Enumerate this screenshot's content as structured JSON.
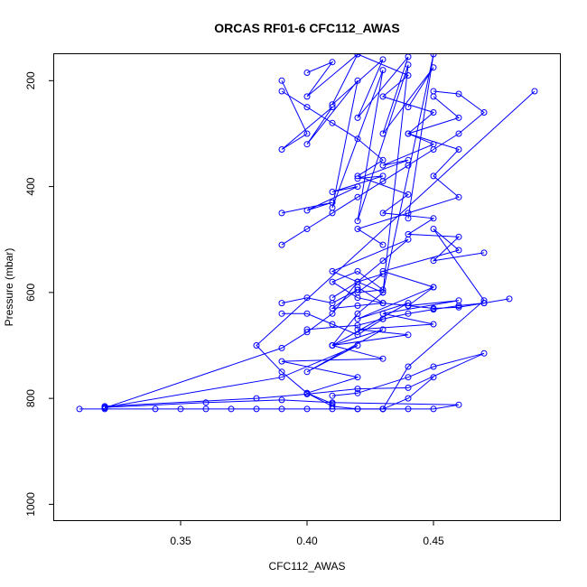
{
  "chart_data": {
    "type": "line",
    "title": "ORCAS RF01-6 CFC112_AWAS",
    "xlabel": "CFC112_AWAS",
    "ylabel": "Pressure (mbar)",
    "xlim": [
      0.3,
      0.5
    ],
    "ylim": [
      1030,
      150
    ],
    "y_reversed": true,
    "x_ticks": [
      0.35,
      0.4,
      0.45
    ],
    "x_tick_labels": [
      "0.35",
      "0.40",
      "0.45"
    ],
    "y_ticks": [
      200,
      400,
      600,
      800,
      1000
    ],
    "y_tick_labels": [
      "200",
      "400",
      "600",
      "800",
      "1000"
    ],
    "grid": false,
    "color": "#0000ff",
    "series": [
      {
        "x": [
          0.31,
          0.32,
          0.34,
          0.35,
          0.36,
          0.37,
          0.38,
          0.39,
          0.4,
          0.41,
          0.42,
          0.43,
          0.44,
          0.45,
          0.46,
          0.41,
          0.39,
          0.36,
          0.32
        ],
        "y": [
          820,
          820,
          820,
          820,
          820,
          820,
          820,
          820,
          820,
          820,
          820,
          820,
          820,
          820,
          812,
          808,
          803,
          808,
          817
        ]
      },
      {
        "x": [
          0.32,
          0.39,
          0.42,
          0.4,
          0.43,
          0.41,
          0.44,
          0.42,
          0.45,
          0.43,
          0.46,
          0.45,
          0.47,
          0.44,
          0.43
        ],
        "y": [
          817,
          760,
          700,
          750,
          670,
          700,
          620,
          650,
          590,
          560,
          520,
          480,
          615,
          740,
          820
        ]
      },
      {
        "x": [
          0.32,
          0.38,
          0.4,
          0.42,
          0.44,
          0.47,
          0.45,
          0.44,
          0.42,
          0.41
        ],
        "y": [
          815,
          800,
          792,
          782,
          780,
          715,
          740,
          760,
          790,
          795
        ]
      },
      {
        "x": [
          0.32,
          0.39,
          0.4,
          0.41,
          0.42,
          0.43,
          0.44,
          0.41,
          0.43,
          0.42,
          0.41
        ],
        "y": [
          818,
          705,
          675,
          640,
          580,
          540,
          500,
          560,
          600,
          640,
          700
        ]
      },
      {
        "x": [
          0.49,
          0.38,
          0.39,
          0.4,
          0.41,
          0.42,
          0.43,
          0.44,
          0.45
        ],
        "y": [
          220,
          700,
          750,
          790,
          815,
          820,
          820,
          800,
          760
        ]
      },
      {
        "x": [
          0.4,
          0.42,
          0.43,
          0.44,
          0.45,
          0.46,
          0.47,
          0.48
        ],
        "y": [
          670,
          662,
          650,
          640,
          632,
          625,
          620,
          612
        ]
      },
      {
        "x": [
          0.41,
          0.4,
          0.42,
          0.39,
          0.43,
          0.41,
          0.44,
          0.42,
          0.45,
          0.43,
          0.46,
          0.44,
          0.45
        ],
        "y": [
          810,
          790,
          760,
          730,
          725,
          700,
          680,
          670,
          660,
          640,
          615,
          625,
          590
        ]
      },
      {
        "x": [
          0.39,
          0.4,
          0.39,
          0.41,
          0.4,
          0.42,
          0.41,
          0.43,
          0.42,
          0.44,
          0.43,
          0.45,
          0.44
        ],
        "y": [
          200,
          300,
          330,
          250,
          320,
          200,
          440,
          180,
          465,
          170,
          600,
          150,
          460
        ]
      },
      {
        "x": [
          0.39,
          0.4,
          0.41,
          0.42,
          0.43,
          0.42,
          0.44,
          0.43,
          0.45,
          0.44,
          0.46,
          0.45,
          0.47
        ],
        "y": [
          220,
          250,
          280,
          310,
          350,
          380,
          415,
          450,
          460,
          490,
          495,
          540,
          525
        ]
      },
      {
        "x": [
          0.4,
          0.41,
          0.4,
          0.42,
          0.41,
          0.43,
          0.42,
          0.44,
          0.43,
          0.45,
          0.44
        ],
        "y": [
          185,
          165,
          230,
          150,
          245,
          160,
          270,
          155,
          300,
          175,
          250
        ]
      },
      {
        "x": [
          0.39,
          0.41,
          0.4,
          0.42,
          0.41,
          0.43,
          0.42,
          0.44,
          0.43,
          0.45,
          0.44,
          0.46,
          0.45
        ],
        "y": [
          450,
          430,
          445,
          400,
          410,
          380,
          385,
          350,
          360,
          320,
          300,
          270,
          230
        ]
      },
      {
        "x": [
          0.39,
          0.4,
          0.41,
          0.42,
          0.43,
          0.44,
          0.45,
          0.46,
          0.47,
          0.46,
          0.45
        ],
        "y": [
          510,
          480,
          450,
          420,
          390,
          360,
          330,
          300,
          260,
          225,
          220
        ]
      },
      {
        "x": [
          0.42,
          0.44,
          0.43,
          0.45,
          0.44,
          0.46,
          0.45,
          0.46,
          0.44,
          0.42,
          0.43
        ],
        "y": [
          150,
          190,
          230,
          260,
          300,
          330,
          380,
          420,
          450,
          480,
          510
        ]
      },
      {
        "x": [
          0.41,
          0.42,
          0.43,
          0.42,
          0.43,
          0.42,
          0.41,
          0.42,
          0.43,
          0.42
        ],
        "y": [
          610,
          580,
          565,
          600,
          595,
          560,
          580,
          610,
          620,
          590
        ]
      },
      {
        "x": [
          0.39,
          0.4,
          0.41,
          0.42,
          0.41,
          0.42,
          0.43,
          0.44,
          0.45,
          0.46,
          0.47
        ],
        "y": [
          620,
          610,
          620,
          595,
          630,
          625,
          620,
          625,
          630,
          628,
          620
        ]
      },
      {
        "x": [
          0.39,
          0.4,
          0.41,
          0.42,
          0.43
        ],
        "y": [
          640,
          640,
          660,
          680,
          650
        ]
      }
    ]
  }
}
